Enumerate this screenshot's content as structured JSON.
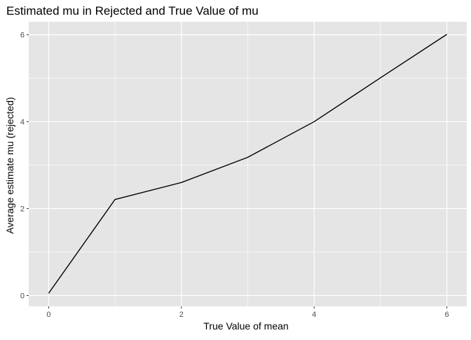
{
  "chart_data": {
    "type": "line",
    "title": "Estimated mu in Rejected and True Value of mu",
    "xlabel": "True Value of mean",
    "ylabel": "Average estimate mu (rejected)",
    "x": [
      0,
      1,
      2,
      3,
      4,
      5,
      6
    ],
    "series": [
      {
        "values": [
          0.05,
          2.21,
          2.6,
          3.18,
          4.0,
          5.01,
          6.01
        ]
      }
    ],
    "xlim": [
      -0.3,
      6.3
    ],
    "ylim": [
      -0.25,
      6.3
    ],
    "x_ticks": [
      0,
      2,
      4,
      6
    ],
    "x_tick_labels": [
      "0",
      "2",
      "4",
      "6"
    ],
    "x_minor_ticks": [
      1,
      3,
      5
    ],
    "y_ticks": [
      0,
      2,
      4,
      6
    ],
    "y_tick_labels": [
      "0",
      "2",
      "4",
      "6"
    ],
    "y_minor_ticks": [
      1,
      3,
      5
    ],
    "grid": true,
    "legend": "none",
    "colors": {
      "panel_background": "#e5e5e5",
      "grid": "#ffffff",
      "line": "#000000",
      "tick_label": "#4d4d4d",
      "axis_title": "#000000",
      "tick_mark": "#333333"
    }
  }
}
